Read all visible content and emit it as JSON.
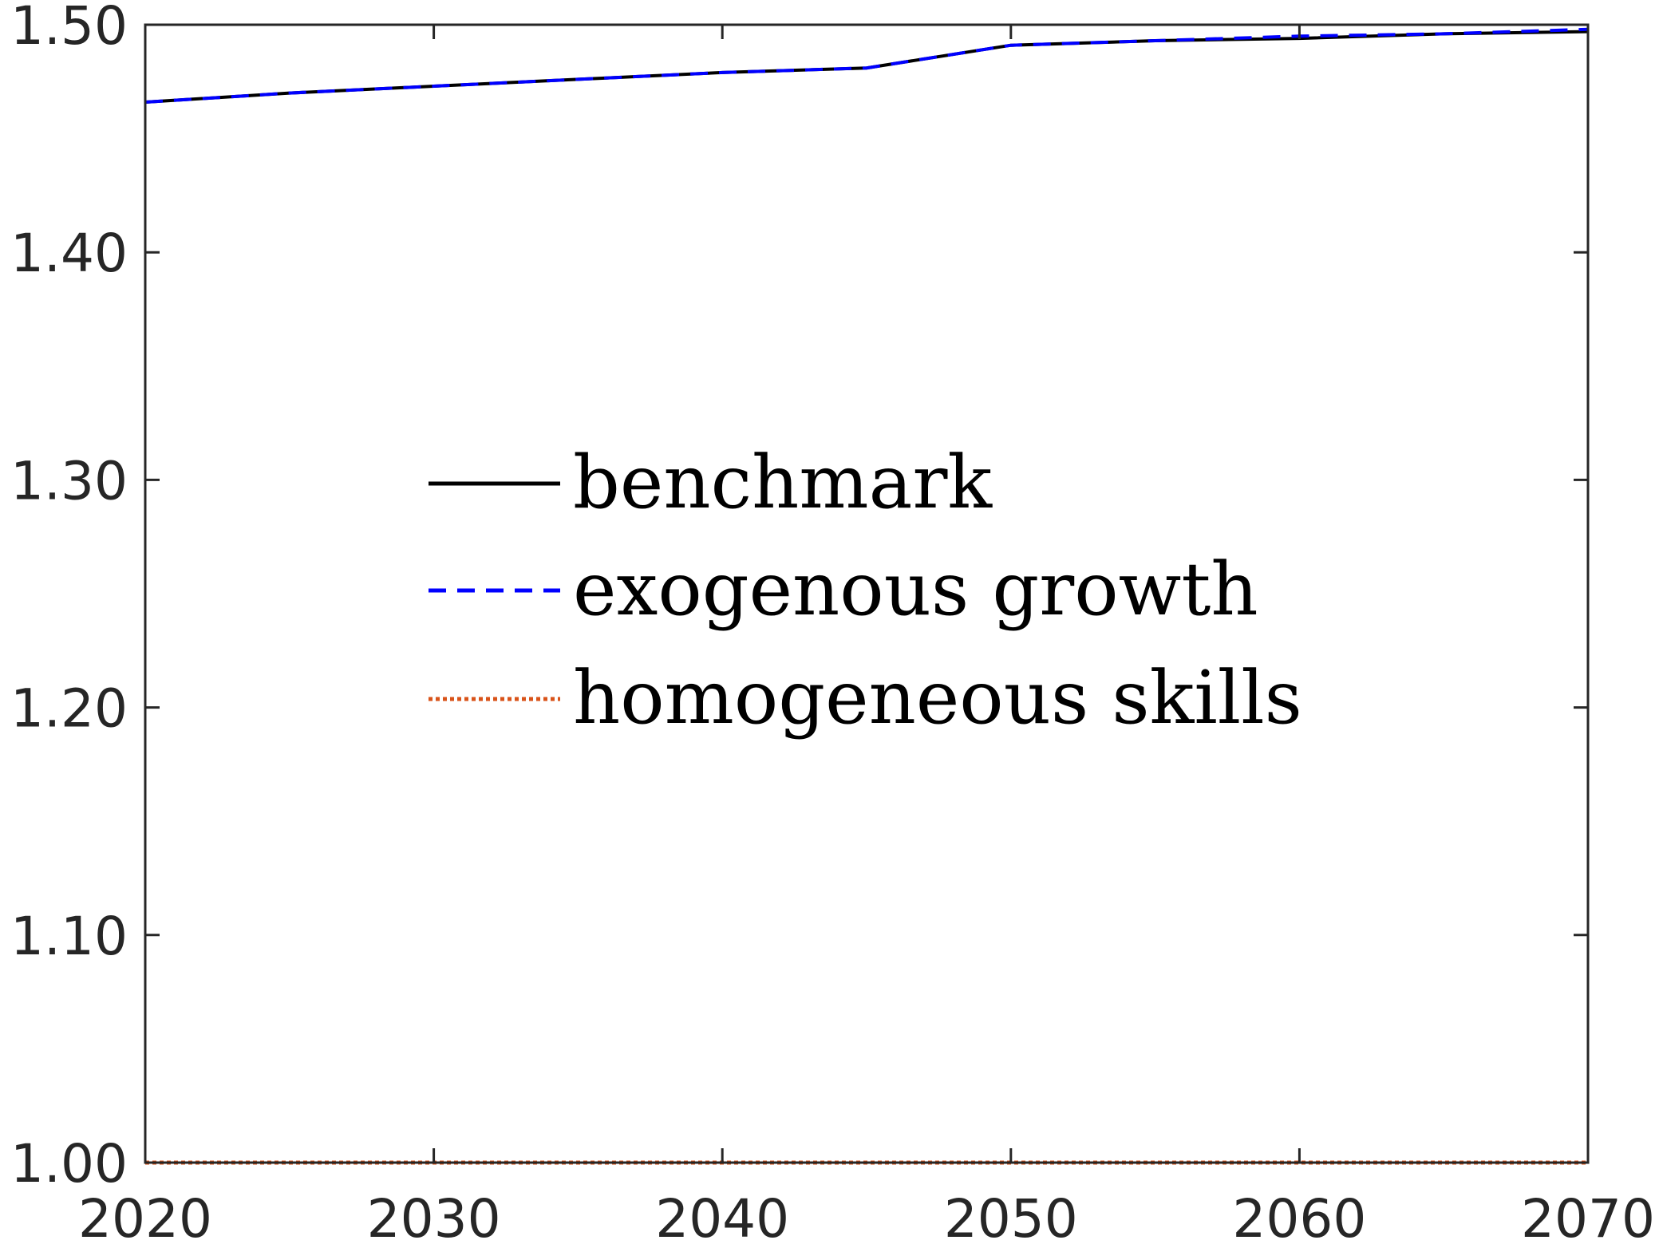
{
  "chart_data": {
    "type": "line",
    "title": "",
    "xlabel": "",
    "ylabel": "",
    "xlim": [
      2020,
      2070
    ],
    "ylim": [
      1.0,
      1.5
    ],
    "xticks": [
      "2020",
      "2030",
      "2040",
      "2050",
      "2060",
      "2070"
    ],
    "yticks": [
      "1.00",
      "1.10",
      "1.20",
      "1.30",
      "1.40",
      "1.50"
    ],
    "grid": false,
    "legend_position": "center",
    "series": [
      {
        "name": "benchmark",
        "color": "#000000",
        "style": "solid",
        "x": [
          2020,
          2025,
          2030,
          2035,
          2040,
          2045,
          2050,
          2055,
          2060,
          2065,
          2070
        ],
        "values": [
          1.466,
          1.47,
          1.473,
          1.476,
          1.479,
          1.481,
          1.491,
          1.493,
          1.494,
          1.496,
          1.497
        ]
      },
      {
        "name": "exogenous growth",
        "color": "#0000ff",
        "style": "dashed",
        "x": [
          2020,
          2025,
          2030,
          2035,
          2040,
          2045,
          2050,
          2055,
          2060,
          2065,
          2070
        ],
        "values": [
          1.466,
          1.47,
          1.473,
          1.476,
          1.479,
          1.481,
          1.491,
          1.493,
          1.495,
          1.496,
          1.498
        ]
      },
      {
        "name": "homogeneous skills",
        "color": "#d95319",
        "style": "dotted",
        "x": [
          2020,
          2025,
          2030,
          2035,
          2040,
          2045,
          2050,
          2055,
          2060,
          2065,
          2070
        ],
        "values": [
          1.0,
          1.0,
          1.0,
          1.0,
          1.0,
          1.0,
          1.0,
          1.0,
          1.0,
          1.0,
          1.0
        ]
      }
    ]
  }
}
